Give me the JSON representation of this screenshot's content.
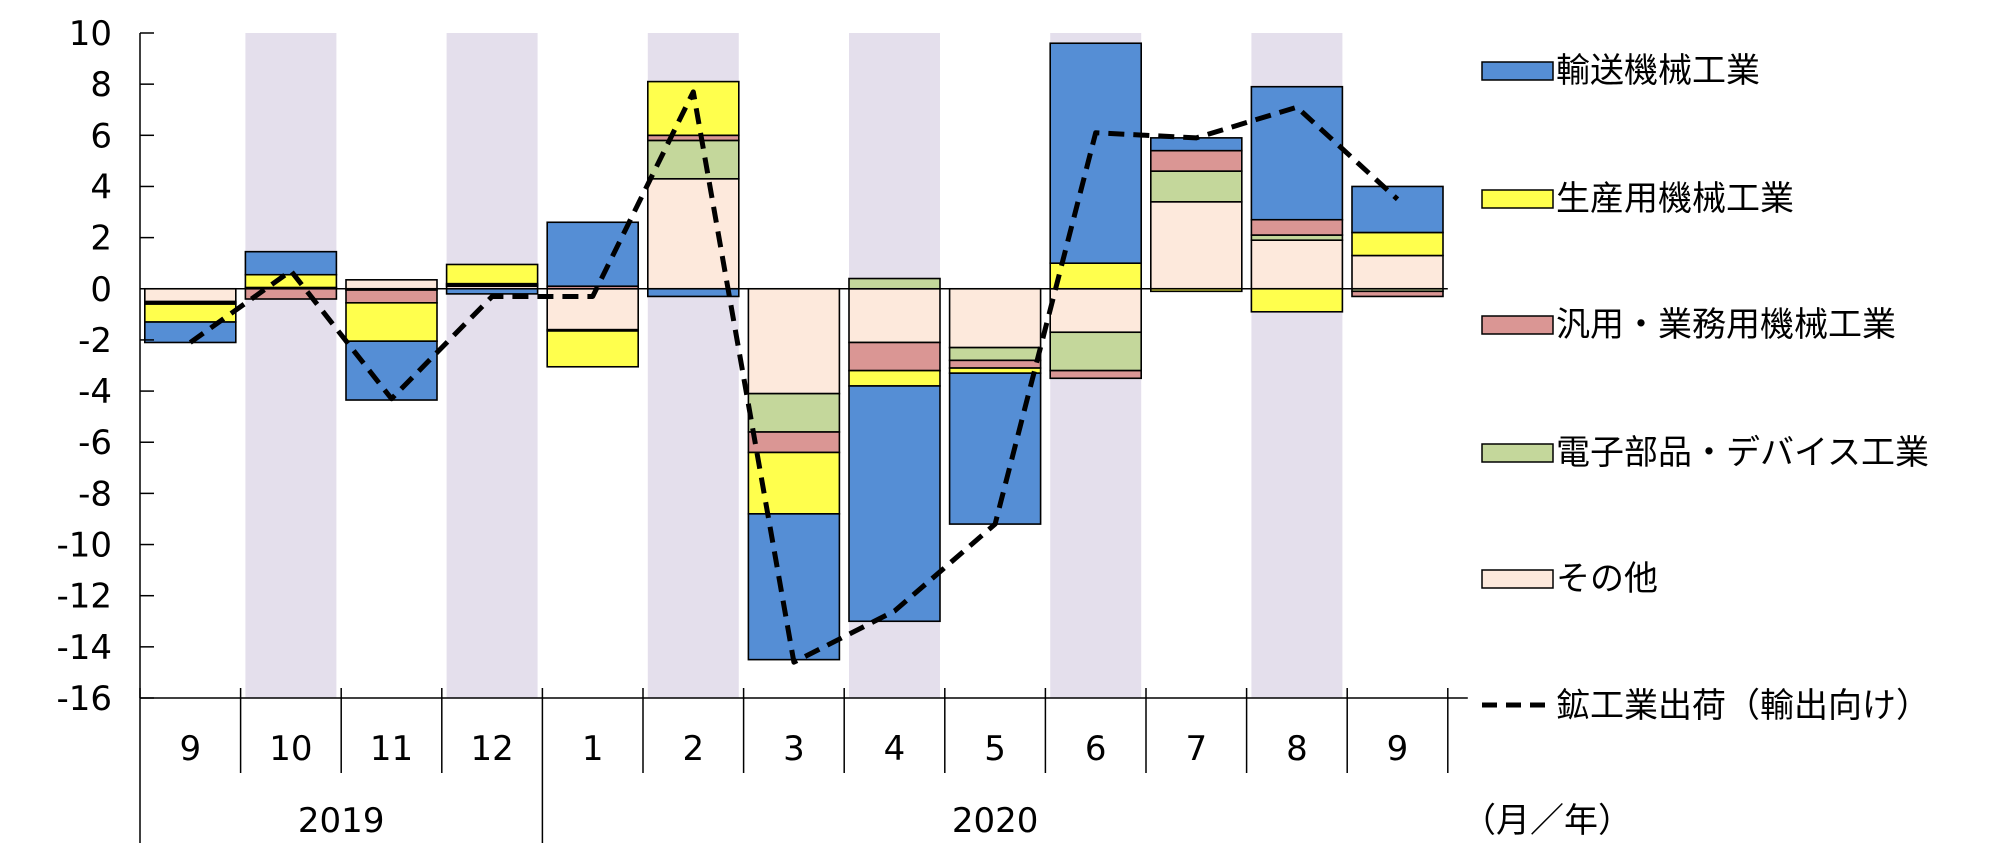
{
  "chart_data": {
    "type": "bar",
    "stacked": true,
    "categories": [
      "9",
      "10",
      "11",
      "12",
      "1",
      "2",
      "3",
      "4",
      "5",
      "6",
      "7",
      "8",
      "9"
    ],
    "years": [
      {
        "label": "2019",
        "from": 0,
        "to": 3
      },
      {
        "label": "2020",
        "from": 4,
        "to": 12
      }
    ],
    "x_unit_label": "（月／年）",
    "shaded_categories": [
      1,
      3,
      5,
      7,
      9,
      11
    ],
    "ylim": [
      -16,
      10
    ],
    "yticks": [
      10,
      8,
      6,
      4,
      2,
      0,
      -2,
      -4,
      -6,
      -8,
      -10,
      -12,
      -14,
      -16
    ],
    "ytick_labels": [
      "10",
      "8",
      "6",
      "4",
      "2",
      "0",
      "-2",
      "-4",
      "-6",
      "-8",
      "-10",
      "-12",
      "-14",
      "-16"
    ],
    "grid": false,
    "legend_position": "right",
    "series": [
      {
        "name": "その他",
        "color": "#fde9dc",
        "values": [
          -0.5,
          0.0,
          0.35,
          0.1,
          -1.6,
          4.3,
          -4.1,
          -2.1,
          -2.3,
          -1.7,
          3.4,
          1.9,
          1.3
        ]
      },
      {
        "name": "電子部品・デバイス工業",
        "color": "#c4d79b",
        "values": [
          -0.05,
          0.05,
          -0.05,
          0.05,
          -0.05,
          1.5,
          -1.5,
          0.4,
          -0.5,
          -1.5,
          1.2,
          0.2,
          -0.1
        ]
      },
      {
        "name": "汎用・業務用機械工業",
        "color": "#da9694",
        "values": [
          -0.05,
          -0.4,
          -0.5,
          0.05,
          0.1,
          0.2,
          -0.8,
          -1.1,
          -0.3,
          -0.3,
          0.8,
          0.6,
          -0.2
        ]
      },
      {
        "name": "生産用機械工業",
        "color": "#ffff4d",
        "values": [
          -0.7,
          0.5,
          -1.5,
          0.75,
          -1.4,
          2.1,
          -2.4,
          -0.6,
          -0.2,
          1.0,
          -0.1,
          -0.9,
          0.9
        ]
      },
      {
        "name": "輸送機械工業",
        "color": "#558ed5",
        "values": [
          -0.8,
          0.9,
          -2.3,
          -0.2,
          2.5,
          -0.3,
          -5.7,
          -9.2,
          -5.9,
          8.6,
          0.5,
          5.2,
          1.8
        ]
      }
    ],
    "line_series": {
      "name": "鉱工業出荷（輸出向け）",
      "color": "#000000",
      "dashed": true,
      "values": [
        -2.1,
        0.7,
        -4.3,
        -0.3,
        -0.3,
        7.7,
        -14.6,
        -12.6,
        -9.2,
        6.1,
        5.9,
        7.1,
        3.5
      ]
    },
    "legend_order": [
      "輸送機械工業",
      "生産用機械工業",
      "汎用・業務用機械工業",
      "電子部品・デバイス工業",
      "その他",
      "鉱工業出荷（輸出向け）"
    ]
  }
}
